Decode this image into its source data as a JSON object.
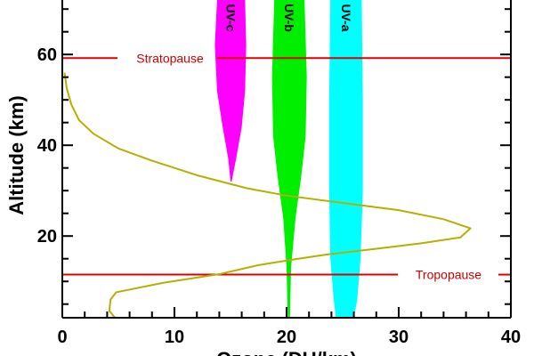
{
  "chart_data": {
    "type": "line",
    "title": "",
    "xlabel": "Ozone (DU/km)",
    "ylabel": "Altitude (km)",
    "xlim": [
      0,
      40
    ],
    "ylim": [
      2,
      72
    ],
    "x_ticks": [
      0,
      10,
      20,
      30,
      40
    ],
    "y_ticks": [
      20,
      40,
      60
    ],
    "grid": false,
    "legend": "none",
    "series": [
      {
        "color": "#b5b000",
        "points": [
          {
            "x": 4.7,
            "y": 2.0
          },
          {
            "x": 4.2,
            "y": 3.5
          },
          {
            "x": 4.3,
            "y": 6.0
          },
          {
            "x": 4.8,
            "y": 7.6
          },
          {
            "x": 9.0,
            "y": 9.7
          },
          {
            "x": 14.0,
            "y": 11.6
          },
          {
            "x": 17.5,
            "y": 13.6
          },
          {
            "x": 20.5,
            "y": 14.8
          },
          {
            "x": 23.5,
            "y": 15.9
          },
          {
            "x": 28.0,
            "y": 17.2
          },
          {
            "x": 32.0,
            "y": 18.4
          },
          {
            "x": 35.5,
            "y": 19.7
          },
          {
            "x": 36.4,
            "y": 21.7
          },
          {
            "x": 34.0,
            "y": 23.7
          },
          {
            "x": 30.0,
            "y": 25.7
          },
          {
            "x": 25.0,
            "y": 27.3
          },
          {
            "x": 20.0,
            "y": 28.9
          },
          {
            "x": 16.5,
            "y": 30.5
          },
          {
            "x": 12.0,
            "y": 33.4
          },
          {
            "x": 8.0,
            "y": 36.6
          },
          {
            "x": 5.0,
            "y": 39.3
          },
          {
            "x": 2.8,
            "y": 42.5
          },
          {
            "x": 1.5,
            "y": 45.5
          },
          {
            "x": 0.8,
            "y": 49.0
          },
          {
            "x": 0.4,
            "y": 52.5
          },
          {
            "x": 0.2,
            "y": 56.0
          }
        ]
      }
    ],
    "reference_lines": [
      {
        "label": "Stratopause",
        "y": 59.2,
        "color": "#dd0000"
      },
      {
        "label": "Tropopause",
        "y": 11.5,
        "color": "#dd0000"
      }
    ],
    "bands": [
      {
        "label": "UV-c",
        "color": "#ff00ff",
        "left": [
          {
            "x": 13.8,
            "y": 72
          },
          {
            "x": 13.6,
            "y": 62
          },
          {
            "x": 13.8,
            "y": 52
          },
          {
            "x": 14.3,
            "y": 44
          },
          {
            "x": 14.8,
            "y": 37
          },
          {
            "x": 15.0,
            "y": 32
          }
        ],
        "right": [
          {
            "x": 16.3,
            "y": 72
          },
          {
            "x": 16.4,
            "y": 62
          },
          {
            "x": 16.3,
            "y": 52
          },
          {
            "x": 16.0,
            "y": 44
          },
          {
            "x": 15.5,
            "y": 37
          },
          {
            "x": 15.1,
            "y": 32
          }
        ]
      },
      {
        "label": "UV-b",
        "color": "#00ee00",
        "left": [
          {
            "x": 18.9,
            "y": 72
          },
          {
            "x": 18.7,
            "y": 55
          },
          {
            "x": 18.8,
            "y": 42
          },
          {
            "x": 19.2,
            "y": 33
          },
          {
            "x": 19.7,
            "y": 24
          },
          {
            "x": 20.0,
            "y": 13
          },
          {
            "x": 20.1,
            "y": 2
          }
        ],
        "right": [
          {
            "x": 21.6,
            "y": 72
          },
          {
            "x": 21.8,
            "y": 55
          },
          {
            "x": 21.7,
            "y": 42
          },
          {
            "x": 21.3,
            "y": 33
          },
          {
            "x": 20.8,
            "y": 24
          },
          {
            "x": 20.4,
            "y": 13
          },
          {
            "x": 20.3,
            "y": 2
          }
        ]
      },
      {
        "label": "UV-a",
        "color": "#00ffff",
        "left": [
          {
            "x": 23.9,
            "y": 72
          },
          {
            "x": 23.8,
            "y": 50
          },
          {
            "x": 23.8,
            "y": 30
          },
          {
            "x": 23.9,
            "y": 15
          },
          {
            "x": 24.2,
            "y": 6
          },
          {
            "x": 24.4,
            "y": 2
          }
        ],
        "right": [
          {
            "x": 26.7,
            "y": 72
          },
          {
            "x": 26.8,
            "y": 50
          },
          {
            "x": 26.8,
            "y": 30
          },
          {
            "x": 26.6,
            "y": 15
          },
          {
            "x": 26.3,
            "y": 6
          },
          {
            "x": 26.0,
            "y": 2
          }
        ]
      }
    ]
  }
}
